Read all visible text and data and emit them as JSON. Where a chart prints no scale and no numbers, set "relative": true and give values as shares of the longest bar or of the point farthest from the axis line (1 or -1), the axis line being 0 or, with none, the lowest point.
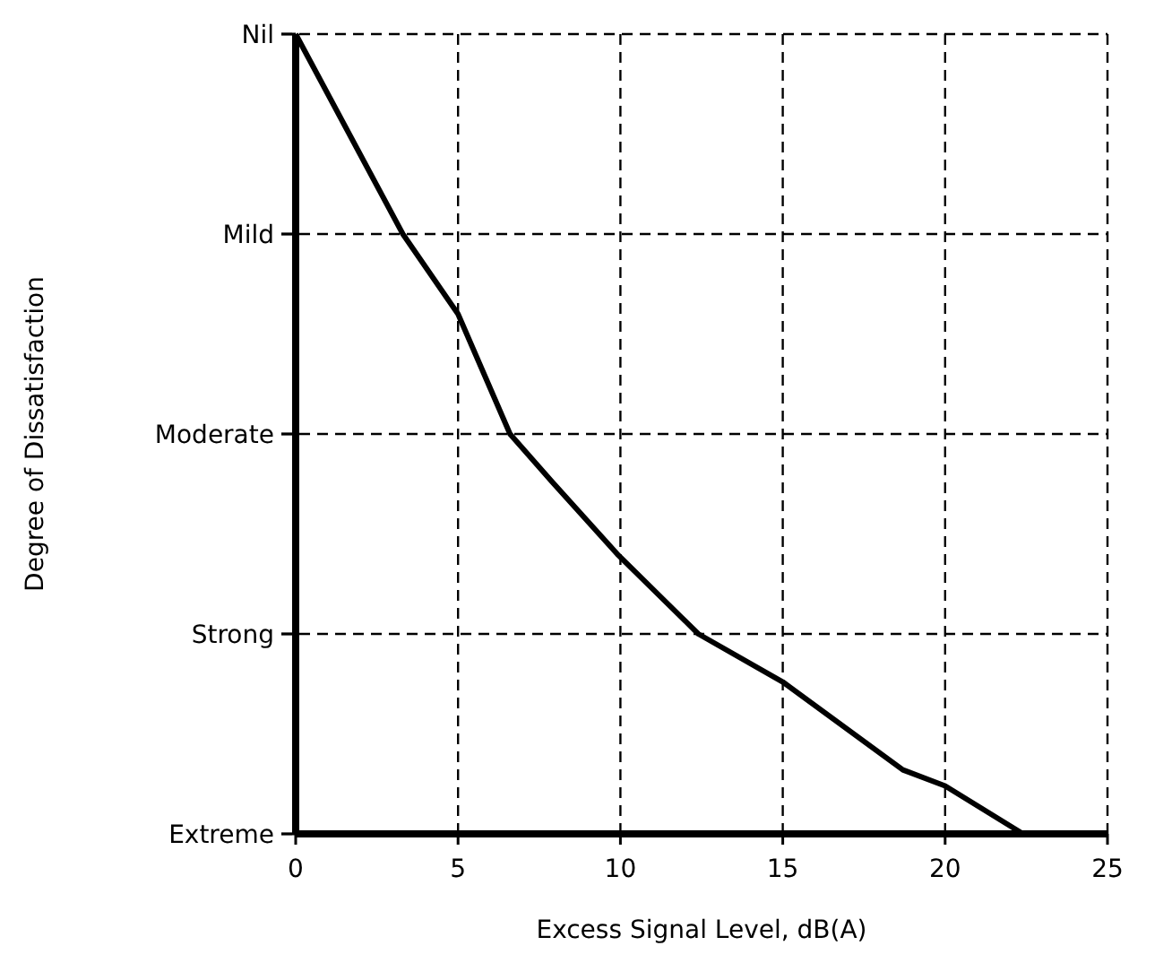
{
  "chart_data": {
    "type": "line",
    "xlabel": "Excess Signal Level, dB(A)",
    "x": [
      0,
      3.3,
      5,
      6.6,
      7.9,
      9.9,
      12.4,
      15,
      18.7,
      20,
      22.4
    ],
    "series": [
      {
        "color": "#000000",
        "values": [
          1,
          0.75,
          0.65,
          0.5,
          0.44,
          0.35,
          0.25,
          0.19,
          0.08,
          0.06,
          0
        ]
      }
    ],
    "relative": true,
    "annotations": [
      "Degree of Dissatisfaction",
      "Extreme",
      "Strong",
      "Moderate",
      "Mild",
      "Nil"
    ],
    "xlim": [
      0,
      25
    ],
    "xticks": [
      0,
      5,
      10,
      15,
      20,
      25
    ],
    "grid": true,
    "marker": "none",
    "line_style": "solid"
  }
}
